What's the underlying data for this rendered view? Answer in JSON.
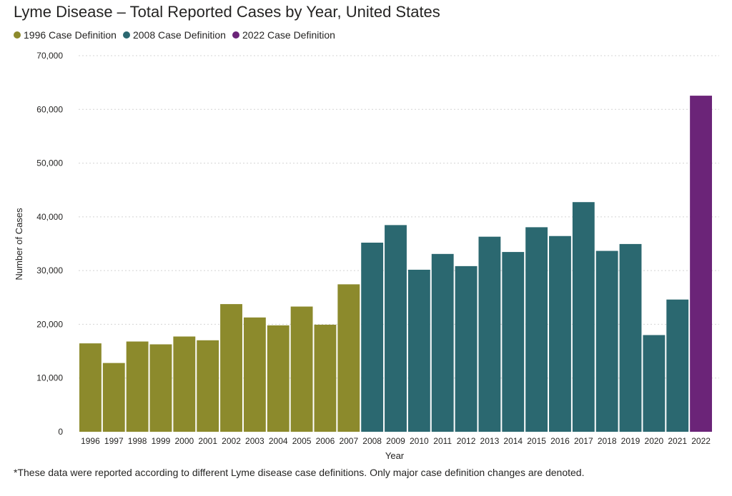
{
  "chart_data": {
    "type": "bar",
    "title": "Lyme Disease – Total Reported Cases by Year, United States",
    "xlabel": "Year",
    "ylabel": "Number of Cases",
    "ylim": [
      0,
      70000
    ],
    "yticks": [
      0,
      10000,
      20000,
      30000,
      40000,
      50000,
      60000,
      70000
    ],
    "ytick_labels": [
      "0",
      "10,000",
      "20,000",
      "30,000",
      "40,000",
      "50,000",
      "60,000",
      "70,000"
    ],
    "grid": "horizontal dotted",
    "legend_position": "top-left",
    "categories": [
      "1996",
      "1997",
      "1998",
      "1999",
      "2000",
      "2001",
      "2002",
      "2003",
      "2004",
      "2005",
      "2006",
      "2007",
      "2008",
      "2009",
      "2010",
      "2011",
      "2012",
      "2013",
      "2014",
      "2015",
      "2016",
      "2017",
      "2018",
      "2019",
      "2020",
      "2021",
      "2022"
    ],
    "values": [
      16455,
      12801,
      16801,
      16273,
      17730,
      17029,
      23763,
      21273,
      19804,
      23305,
      19931,
      27444,
      35198,
      38468,
      30158,
      33097,
      30831,
      36307,
      33461,
      38069,
      36429,
      42743,
      33666,
      34945,
      17997,
      24610,
      62551
    ],
    "series_assignment": [
      "1996",
      "1996",
      "1996",
      "1996",
      "1996",
      "1996",
      "1996",
      "1996",
      "1996",
      "1996",
      "1996",
      "1996",
      "2008",
      "2008",
      "2008",
      "2008",
      "2008",
      "2008",
      "2008",
      "2008",
      "2008",
      "2008",
      "2008",
      "2008",
      "2008",
      "2008",
      "2022"
    ],
    "series": [
      {
        "name": "1996 Case Definition",
        "key": "1996",
        "color": "#8c8a2c"
      },
      {
        "name": "2008 Case Definition",
        "key": "2008",
        "color": "#2b6870"
      },
      {
        "name": "2022 Case Definition",
        "key": "2022",
        "color": "#6b2478"
      }
    ]
  },
  "footnote": "*These data were reported according to different Lyme disease case definitions. Only major case definition changes are denoted."
}
